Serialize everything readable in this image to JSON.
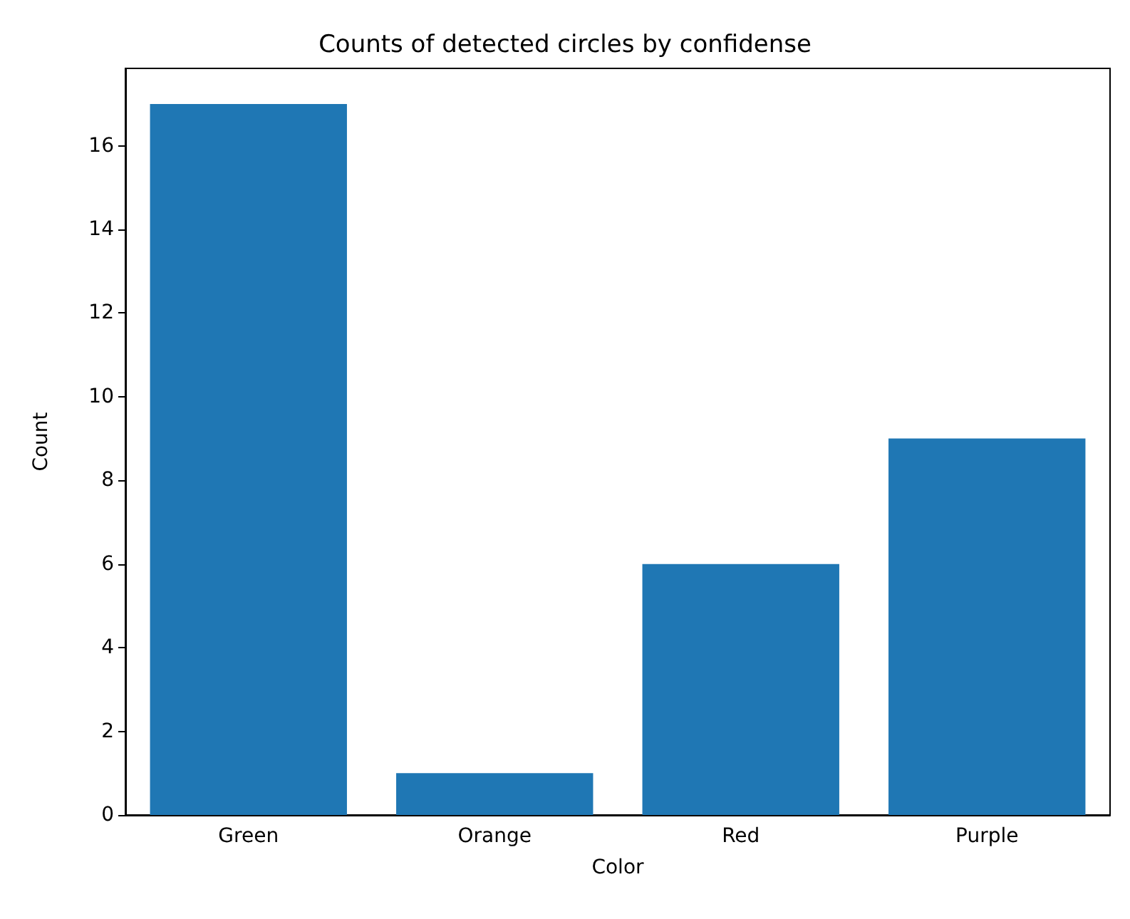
{
  "chart_data": {
    "type": "bar",
    "title": "Counts of detected circles by confidense",
    "xlabel": "Color",
    "ylabel": "Count",
    "categories": [
      "Green",
      "Orange",
      "Red",
      "Purple"
    ],
    "values": [
      17,
      1,
      6,
      9
    ],
    "color": "#1f77b4",
    "ylim": [
      0,
      17.85
    ],
    "yticks": [
      0,
      2,
      4,
      6,
      8,
      10,
      12,
      14,
      16
    ],
    "grid": false
  }
}
